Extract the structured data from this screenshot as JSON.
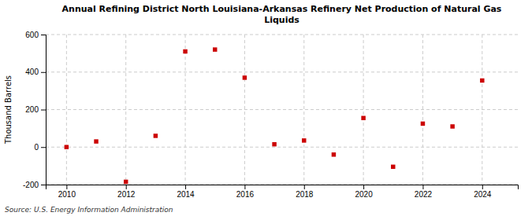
{
  "chart_data": {
    "type": "scatter",
    "title": "Annual Refining District North Louisiana-Arkansas Refinery Net Production of Natural Gas\nLiquids",
    "ylabel": "Thousand Barrels",
    "annotations": [
      "Source: U.S. Energy Information Administration"
    ],
    "x": [
      2010,
      2011,
      2012,
      2013,
      2014,
      2015,
      2016,
      2017,
      2018,
      2019,
      2020,
      2021,
      2022,
      2023,
      2024
    ],
    "values": [
      0,
      30,
      -185,
      60,
      510,
      520,
      370,
      15,
      35,
      -40,
      155,
      -105,
      125,
      110,
      355
    ],
    "color": "#cc0000",
    "marker": "square",
    "xlim": [
      2009.3,
      2025.2
    ],
    "xticks": [
      2010,
      2012,
      2014,
      2016,
      2018,
      2020,
      2022,
      2024
    ],
    "ylim": [
      -200,
      600
    ],
    "yticks": [
      -200,
      0,
      200,
      400,
      600
    ],
    "grid": true
  }
}
